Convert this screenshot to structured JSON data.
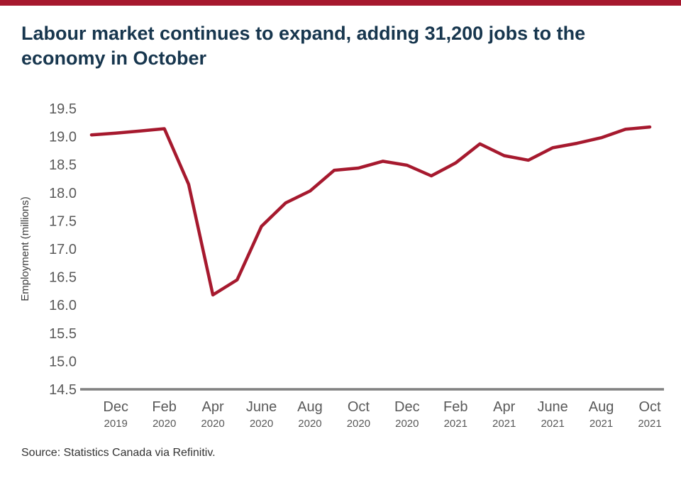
{
  "accent_color": "#A6192E",
  "title": "Labour market continues to expand, adding 31,200 jobs to the economy in October",
  "source": "Source: Statistics Canada via Refinitiv.",
  "chart_data": {
    "type": "line",
    "title": "Labour market continues to expand, adding 31,200 jobs to the economy in October",
    "xlabel": "",
    "ylabel": "Employment (millions)",
    "ylim": [
      14.5,
      19.5
    ],
    "grid": false,
    "legend": "none",
    "line_color": "#A6192E",
    "x": [
      "Nov 2019",
      "Dec 2019",
      "Jan 2020",
      "Feb 2020",
      "Mar 2020",
      "Apr 2020",
      "May 2020",
      "Jun 2020",
      "Jul 2020",
      "Aug 2020",
      "Sep 2020",
      "Oct 2020",
      "Nov 2020",
      "Dec 2020",
      "Jan 2021",
      "Feb 2021",
      "Mar 2021",
      "Apr 2021",
      "May 2021",
      "Jun 2021",
      "Jul 2021",
      "Aug 2021",
      "Sep 2021",
      "Oct 2021"
    ],
    "values": [
      19.03,
      19.06,
      19.1,
      19.14,
      18.15,
      16.18,
      16.45,
      17.4,
      17.82,
      18.03,
      18.4,
      18.44,
      18.56,
      18.49,
      18.3,
      18.53,
      18.87,
      18.66,
      18.58,
      18.8,
      18.88,
      18.98,
      19.13,
      19.17
    ],
    "y_ticks": [
      "19.5",
      "19.0",
      "18.5",
      "18.0",
      "17.5",
      "17.0",
      "16.5",
      "16.0",
      "15.5",
      "15.0",
      "14.5"
    ],
    "x_tick_labels": [
      {
        "month": "Dec",
        "year": "2019",
        "index": 1
      },
      {
        "month": "Feb",
        "year": "2020",
        "index": 3
      },
      {
        "month": "Apr",
        "year": "2020",
        "index": 5
      },
      {
        "month": "June",
        "year": "2020",
        "index": 7
      },
      {
        "month": "Aug",
        "year": "2020",
        "index": 9
      },
      {
        "month": "Oct",
        "year": "2020",
        "index": 11
      },
      {
        "month": "Dec",
        "year": "2020",
        "index": 13
      },
      {
        "month": "Feb",
        "year": "2021",
        "index": 15
      },
      {
        "month": "Apr",
        "year": "2021",
        "index": 17
      },
      {
        "month": "June",
        "year": "2021",
        "index": 19
      },
      {
        "month": "Aug",
        "year": "2021",
        "index": 21
      },
      {
        "month": "Oct",
        "year": "2021",
        "index": 23
      }
    ]
  }
}
